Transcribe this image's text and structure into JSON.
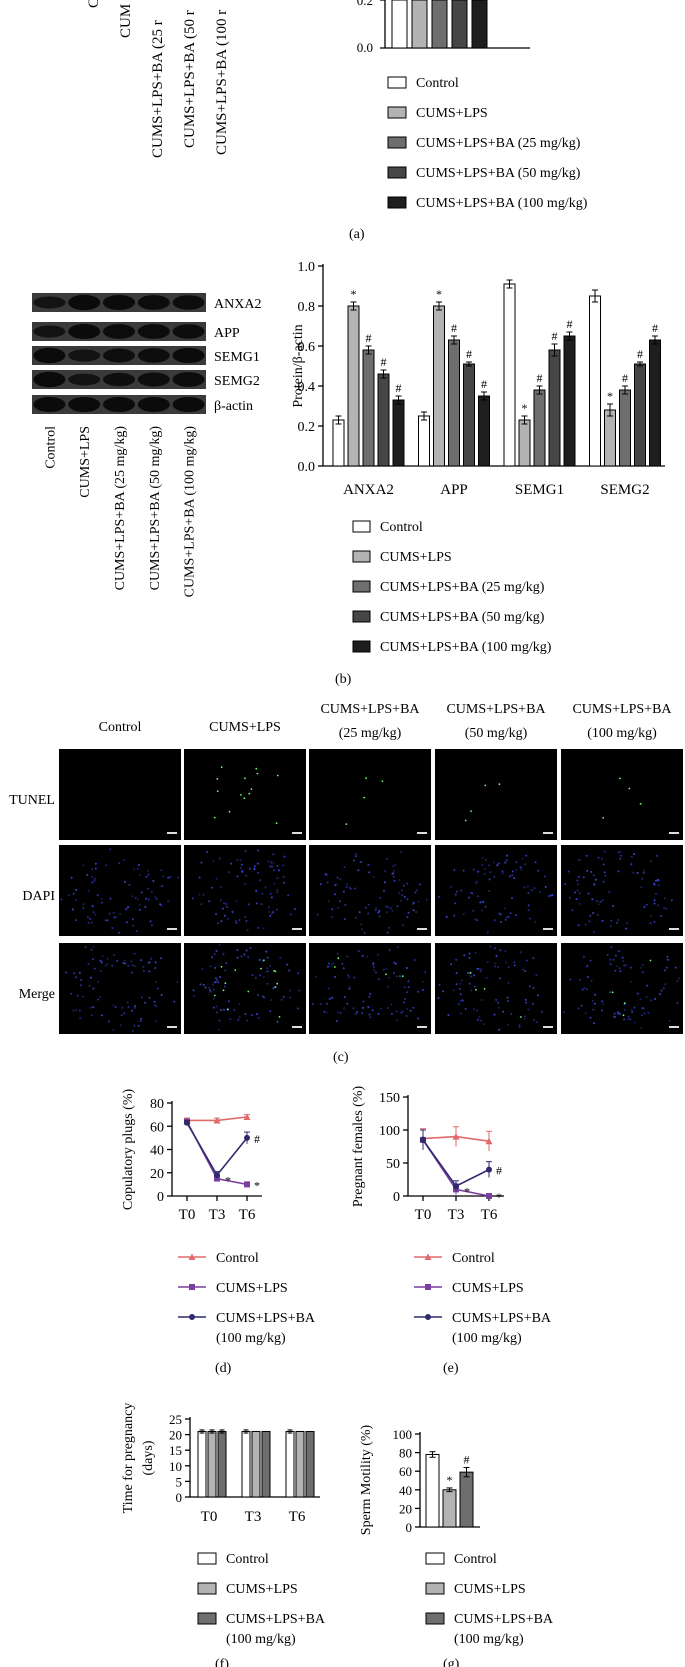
{
  "panel_labels": [
    "(a)",
    "(b)",
    "(c)",
    "(d)",
    "(e)",
    "(f)",
    "(g)"
  ],
  "colors": {
    "control": "#ffffff",
    "cums_lps": "#b3b3b3",
    "ba25": "#6e6e6e",
    "ba50": "#464646",
    "ba100": "#1e1e1e",
    "line_control": "#e06a6a",
    "line_cums": "#7b3fa0",
    "line_ba": "#2f2a6e",
    "fluor_green": "#6cff6c",
    "fluor_blue": "#3a46d8"
  },
  "legend5": [
    "Control",
    "CUMS+LPS",
    "CUMS+LPS+BA (25 mg/kg)",
    "CUMS+LPS+BA (50 mg/kg)",
    "CUMS+LPS+BA (100 mg/kg)"
  ],
  "panel_a": {
    "blot_lane_labels": [
      "C",
      "CUM",
      "CUMS+LPS+BA (25 r",
      "CUMS+LPS+BA (50 r",
      "CUMS+LPS+BA (100 r"
    ],
    "tick_labels": [
      "0.2",
      "0.0"
    ]
  },
  "panel_b": {
    "blot_rows": [
      "ANXA2",
      "APP",
      "SEMG1",
      "SEMG2",
      "β-actin"
    ],
    "blot_lanes": [
      "Control",
      "CUMS+LPS",
      "CUMS+LPS+BA (25 mg/kg)",
      "CUMS+LPS+BA (50 mg/kg)",
      "CUMS+LPS+BA (100 mg/kg)"
    ],
    "ylabel": "Protein/β-actin"
  },
  "panel_c": {
    "columns": [
      "Control",
      "CUMS+LPS",
      "CUMS+LPS+BA",
      "CUMS+LPS+BA",
      "CUMS+LPS+BA"
    ],
    "column_sub": [
      "",
      "",
      "(25 mg/kg)",
      "(50 mg/kg)",
      "(100 mg/kg)"
    ],
    "rows": [
      "TUNEL",
      "DAPI",
      "Merge"
    ]
  },
  "legend3_d": [
    "Control",
    "CUMS+LPS",
    "CUMS+LPS+BA",
    "(100 mg/kg)"
  ],
  "legend3_e": [
    "Control",
    "CUMS+LPS",
    "CUMS+LPS+BA",
    "(100 mg/kg)"
  ],
  "legend3_f": [
    "Control",
    "CUMS+LPS",
    "CUMS+LPS+BA",
    "(100 mg/kg)"
  ],
  "legend3_g": [
    "Control",
    "CUMS+LPS",
    "CUMS+LPS+BA",
    "(100 mg/kg)"
  ],
  "chart_data": [
    {
      "id": "b",
      "type": "bar",
      "ylabel": "Protein/β-actin",
      "ylim": [
        0,
        1.0
      ],
      "yticks": [
        "0.0",
        "0.2",
        "0.4",
        "0.6",
        "0.8",
        "1.0"
      ],
      "categories": [
        "ANXA2",
        "APP",
        "SEMG1",
        "SEMG2"
      ],
      "series": [
        {
          "name": "Control",
          "values": [
            0.23,
            0.25,
            0.91,
            0.85
          ],
          "err": [
            0.02,
            0.02,
            0.02,
            0.03
          ],
          "marks": [
            "",
            "",
            "",
            ""
          ]
        },
        {
          "name": "CUMS+LPS",
          "values": [
            0.8,
            0.8,
            0.23,
            0.28
          ],
          "err": [
            0.02,
            0.02,
            0.02,
            0.03
          ],
          "marks": [
            "*",
            "*",
            "*",
            "*"
          ]
        },
        {
          "name": "CUMS+LPS+BA (25 mg/kg)",
          "values": [
            0.58,
            0.63,
            0.38,
            0.38
          ],
          "err": [
            0.02,
            0.02,
            0.02,
            0.02
          ],
          "marks": [
            "#",
            "#",
            "#",
            "#"
          ]
        },
        {
          "name": "CUMS+LPS+BA (50 mg/kg)",
          "values": [
            0.46,
            0.51,
            0.58,
            0.51
          ],
          "err": [
            0.02,
            0.01,
            0.03,
            0.01
          ],
          "marks": [
            "#",
            "#",
            "#",
            "#"
          ]
        },
        {
          "name": "CUMS+LPS+BA (100 mg/kg)",
          "values": [
            0.33,
            0.35,
            0.65,
            0.63
          ],
          "err": [
            0.02,
            0.02,
            0.02,
            0.02
          ],
          "marks": [
            "#",
            "#",
            "#",
            "#"
          ]
        }
      ]
    },
    {
      "id": "d",
      "type": "line",
      "ylabel": "Copulatory plugs (%)",
      "ylim": [
        0,
        80
      ],
      "yticks": [
        "0",
        "20",
        "40",
        "60",
        "80"
      ],
      "x": [
        "T0",
        "T3",
        "T6"
      ],
      "series": [
        {
          "name": "Control",
          "values": [
            65,
            65,
            68
          ],
          "err": [
            2,
            2,
            2
          ]
        },
        {
          "name": "CUMS+LPS",
          "values": [
            64,
            15,
            10
          ],
          "err": [
            2,
            2,
            1
          ]
        },
        {
          "name": "CUMS+LPS+BA (100 mg/kg)",
          "values": [
            63,
            18,
            50
          ],
          "err": [
            2,
            3,
            5
          ]
        }
      ],
      "marks": [
        "*",
        "*#"
      ]
    },
    {
      "id": "e",
      "type": "line",
      "ylabel": "Pregnant females (%)",
      "ylim": [
        0,
        150
      ],
      "yticks": [
        "0",
        "50",
        "100",
        "150"
      ],
      "x": [
        "T0",
        "T3",
        "T6"
      ],
      "series": [
        {
          "name": "Control",
          "values": [
            87,
            90,
            83
          ],
          "err": [
            15,
            15,
            15
          ]
        },
        {
          "name": "CUMS+LPS",
          "values": [
            85,
            10,
            0
          ],
          "err": [
            15,
            8,
            2
          ]
        },
        {
          "name": "CUMS+LPS+BA (100 mg/kg)",
          "values": [
            85,
            15,
            40
          ],
          "err": [
            15,
            8,
            12
          ]
        }
      ],
      "marks": [
        "*",
        "*#"
      ]
    },
    {
      "id": "f",
      "type": "bar",
      "ylabel": "Time for pregnancy (days)",
      "ylim": [
        0,
        25
      ],
      "yticks": [
        "0",
        "5",
        "10",
        "15",
        "20",
        "25"
      ],
      "categories": [
        "T0",
        "T3",
        "T6"
      ],
      "series": [
        {
          "name": "Control",
          "values": [
            21,
            21,
            21
          ],
          "err": [
            0.5,
            0.5,
            0.5
          ]
        },
        {
          "name": "CUMS+LPS",
          "values": [
            21,
            21,
            21
          ],
          "err": [
            0.5,
            0,
            0
          ]
        },
        {
          "name": "CUMS+LPS+BA (100 mg/kg)",
          "values": [
            21,
            21,
            21
          ],
          "err": [
            0.5,
            0,
            0
          ]
        }
      ]
    },
    {
      "id": "g",
      "type": "bar",
      "ylabel": "Sperm Motility (%)",
      "ylim": [
        0,
        100
      ],
      "yticks": [
        "0",
        "20",
        "40",
        "60",
        "80",
        "100"
      ],
      "categories": [
        "Control",
        "CUMS+LPS",
        "CUMS+LPS+BA (100 mg/kg)"
      ],
      "values": [
        78,
        40,
        59
      ],
      "err": [
        3,
        2,
        5
      ],
      "marks": [
        "",
        "*",
        "#"
      ]
    }
  ]
}
